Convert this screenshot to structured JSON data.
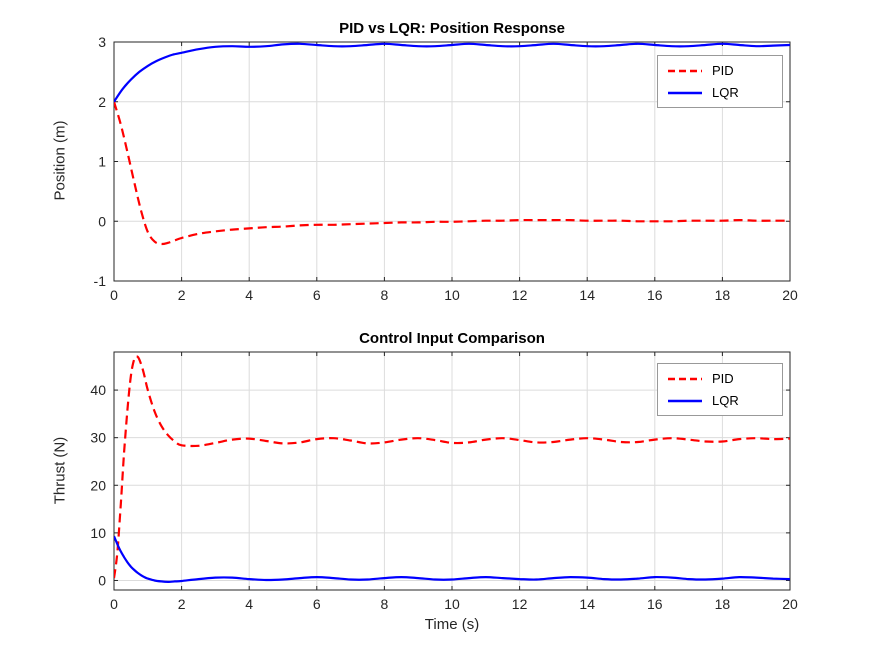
{
  "figure": {
    "background": "#ffffff",
    "axis_color": "#262626",
    "grid_color": "#dcdcdc"
  },
  "chart_data": [
    {
      "type": "line",
      "title": "PID vs LQR: Position Response",
      "xlabel": "",
      "ylabel": "Position (m)",
      "xlim": [
        0,
        20
      ],
      "ylim": [
        -1,
        3
      ],
      "xticks": [
        0,
        2,
        4,
        6,
        8,
        10,
        12,
        14,
        16,
        18,
        20
      ],
      "yticks": [
        -1,
        0,
        1,
        2,
        3
      ],
      "grid": true,
      "legend_position": "northeast",
      "legend": [
        "PID",
        "LQR"
      ],
      "series": [
        {
          "name": "PID",
          "color": "#ff0000",
          "line_style": "dashed",
          "x": [
            0,
            0.2,
            0.4,
            0.6,
            0.8,
            1,
            1.2,
            1.4,
            1.6,
            1.8,
            2,
            2.5,
            3,
            3.5,
            4,
            4.5,
            5,
            5.5,
            6,
            6.5,
            7,
            7.5,
            8,
            8.5,
            9,
            9.5,
            10,
            10.5,
            11,
            11.5,
            12,
            12.5,
            13,
            13.5,
            14,
            14.5,
            15,
            15.5,
            16,
            16.5,
            17,
            17.5,
            18,
            18.5,
            19,
            19.5,
            20
          ],
          "y": [
            2,
            1.62,
            1.15,
            0.65,
            0.18,
            -0.18,
            -0.34,
            -0.38,
            -0.36,
            -0.32,
            -0.28,
            -0.21,
            -0.17,
            -0.14,
            -0.12,
            -0.1,
            -0.09,
            -0.07,
            -0.06,
            -0.06,
            -0.05,
            -0.04,
            -0.03,
            -0.02,
            -0.02,
            -0.01,
            -0.01,
            0,
            0.01,
            0.01,
            0.02,
            0.02,
            0.02,
            0.02,
            0.01,
            0.01,
            0.01,
            0,
            0,
            0,
            0.01,
            0.01,
            0.01,
            0.02,
            0.01,
            0.01,
            0.01
          ]
        },
        {
          "name": "LQR",
          "color": "#0000ff",
          "line_style": "solid",
          "x": [
            0,
            0.25,
            0.5,
            0.75,
            1,
            1.25,
            1.5,
            1.75,
            2,
            2.5,
            3,
            3.5,
            4,
            4.5,
            5,
            5.5,
            6,
            6.5,
            7,
            7.5,
            8,
            8.5,
            9,
            9.5,
            10,
            10.5,
            11,
            11.5,
            12,
            12.5,
            13,
            13.5,
            14,
            14.5,
            15,
            15.5,
            16,
            16.5,
            17,
            17.5,
            18,
            18.5,
            19,
            19.5,
            20
          ],
          "y": [
            2,
            2.21,
            2.37,
            2.5,
            2.6,
            2.68,
            2.74,
            2.79,
            2.82,
            2.88,
            2.92,
            2.93,
            2.92,
            2.93,
            2.96,
            2.97,
            2.95,
            2.93,
            2.93,
            2.95,
            2.97,
            2.95,
            2.93,
            2.93,
            2.95,
            2.97,
            2.95,
            2.93,
            2.93,
            2.95,
            2.97,
            2.95,
            2.93,
            2.93,
            2.95,
            2.97,
            2.95,
            2.93,
            2.93,
            2.95,
            2.97,
            2.95,
            2.93,
            2.94,
            2.95
          ]
        }
      ]
    },
    {
      "type": "line",
      "title": "Control Input Comparison",
      "xlabel": "Time (s)",
      "ylabel": "Thrust (N)",
      "xlim": [
        0,
        20
      ],
      "ylim": [
        -2,
        48
      ],
      "xticks": [
        0,
        2,
        4,
        6,
        8,
        10,
        12,
        14,
        16,
        18,
        20
      ],
      "yticks": [
        0,
        10,
        20,
        30,
        40
      ],
      "grid": true,
      "legend_position": "northeast",
      "legend": [
        "PID",
        "LQR"
      ],
      "series": [
        {
          "name": "PID",
          "color": "#ff0000",
          "line_style": "dashed",
          "x": [
            0,
            0.1,
            0.2,
            0.3,
            0.4,
            0.5,
            0.6,
            0.7,
            0.8,
            0.9,
            1,
            1.2,
            1.4,
            1.6,
            1.8,
            2,
            2.5,
            3,
            3.5,
            4,
            4.5,
            5,
            5.5,
            6,
            6.5,
            7,
            7.5,
            8,
            8.5,
            9,
            9.5,
            10,
            10.5,
            11,
            11.5,
            12,
            12.5,
            13,
            13.5,
            14,
            14.5,
            15,
            15.5,
            16,
            16.5,
            17,
            17.5,
            18,
            18.5,
            19,
            19.5,
            20
          ],
          "y": [
            0.5,
            6,
            16,
            27,
            36,
            43,
            46.5,
            47,
            45.5,
            43,
            40,
            35.5,
            32.5,
            30.5,
            29.2,
            28.4,
            28.3,
            28.9,
            29.6,
            29.8,
            29.3,
            28.8,
            29,
            29.7,
            29.9,
            29.4,
            28.8,
            29,
            29.6,
            29.9,
            29.5,
            28.9,
            29,
            29.6,
            29.9,
            29.5,
            29,
            29.1,
            29.6,
            29.9,
            29.6,
            29.1,
            29.1,
            29.6,
            29.9,
            29.6,
            29.2,
            29.2,
            29.7,
            29.9,
            29.7,
            29.8
          ]
        },
        {
          "name": "LQR",
          "color": "#0000ff",
          "line_style": "solid",
          "x": [
            0,
            0.1,
            0.2,
            0.3,
            0.4,
            0.5,
            0.6,
            0.7,
            0.8,
            0.9,
            1,
            1.2,
            1.4,
            1.6,
            1.8,
            2,
            2.5,
            3,
            3.5,
            4,
            4.5,
            5,
            5.5,
            6,
            6.5,
            7,
            7.5,
            8,
            8.5,
            9,
            9.5,
            10,
            10.5,
            11,
            11.5,
            12,
            12.5,
            13,
            13.5,
            14,
            14.5,
            15,
            15.5,
            16,
            16.5,
            17,
            17.5,
            18,
            18.5,
            19,
            19.5,
            20
          ],
          "y": [
            9.3,
            7.6,
            6.1,
            4.9,
            3.8,
            2.9,
            2.2,
            1.6,
            1.1,
            0.7,
            0.4,
            0,
            -0.2,
            -0.3,
            -0.2,
            -0.1,
            0.3,
            0.6,
            0.6,
            0.3,
            0.1,
            0.2,
            0.5,
            0.7,
            0.5,
            0.2,
            0.2,
            0.5,
            0.7,
            0.5,
            0.2,
            0.2,
            0.5,
            0.7,
            0.5,
            0.3,
            0.2,
            0.5,
            0.7,
            0.6,
            0.3,
            0.2,
            0.4,
            0.7,
            0.6,
            0.3,
            0.2,
            0.4,
            0.7,
            0.6,
            0.4,
            0.3
          ]
        }
      ]
    }
  ]
}
